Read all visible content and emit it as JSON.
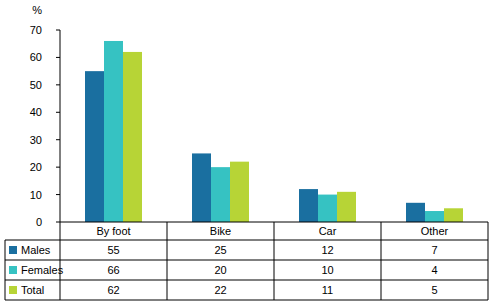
{
  "chart_data": {
    "type": "bar",
    "y_label": "%",
    "categories": [
      "By foot",
      "Bike",
      "Car",
      "Other"
    ],
    "series": [
      {
        "name": "Males",
        "color": "#1a6fa0",
        "values": [
          55,
          25,
          12,
          7
        ]
      },
      {
        "name": "Females",
        "color": "#36c2c2",
        "values": [
          66,
          20,
          10,
          4
        ]
      },
      {
        "name": "Total",
        "color": "#b7d436",
        "values": [
          62,
          22,
          11,
          5
        ]
      }
    ],
    "ylim": [
      0,
      70
    ],
    "yticks": [
      0,
      10,
      20,
      30,
      40,
      50,
      60,
      70
    ],
    "grid": false,
    "data_labels": true
  }
}
